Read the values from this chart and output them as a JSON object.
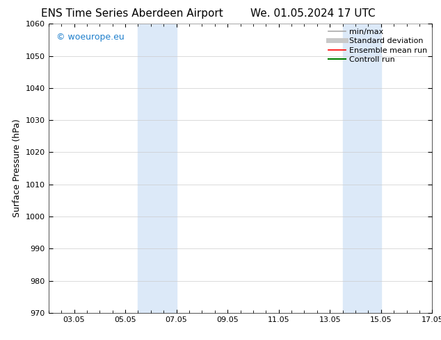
{
  "title_left": "ENS Time Series Aberdeen Airport",
  "title_right": "We. 01.05.2024 17 UTC",
  "ylabel": "Surface Pressure (hPa)",
  "ylim": [
    970,
    1060
  ],
  "yticks": [
    970,
    980,
    990,
    1000,
    1010,
    1020,
    1030,
    1040,
    1050,
    1060
  ],
  "xlim": [
    0,
    15
  ],
  "xtick_labels": [
    "03.05",
    "05.05",
    "07.05",
    "09.05",
    "11.05",
    "13.05",
    "15.05",
    "17.05"
  ],
  "xtick_positions": [
    1.0,
    3.0,
    5.0,
    7.0,
    9.0,
    11.0,
    13.0,
    15.0
  ],
  "minor_xtick_positions": [
    0.0,
    0.5,
    1.0,
    1.5,
    2.0,
    2.5,
    3.0,
    3.5,
    4.0,
    4.5,
    5.0,
    5.5,
    6.0,
    6.5,
    7.0,
    7.5,
    8.0,
    8.5,
    9.0,
    9.5,
    10.0,
    10.5,
    11.0,
    11.5,
    12.0,
    12.5,
    13.0,
    13.5,
    14.0,
    14.5,
    15.0
  ],
  "shaded_bands": [
    {
      "x_start": 3.5,
      "x_end": 5.0
    },
    {
      "x_start": 11.5,
      "x_end": 13.0
    }
  ],
  "shade_color": "#dce9f8",
  "watermark_text": "© woeurope.eu",
  "watermark_color": "#1e7fcc",
  "watermark_fontsize": 9,
  "legend_items": [
    {
      "label": "min/max",
      "color": "#aaaaaa",
      "lw": 1.2,
      "style": "solid"
    },
    {
      "label": "Standard deviation",
      "color": "#c8c8c8",
      "lw": 5,
      "style": "solid"
    },
    {
      "label": "Ensemble mean run",
      "color": "#ff0000",
      "lw": 1.2,
      "style": "solid"
    },
    {
      "label": "Controll run",
      "color": "#008000",
      "lw": 1.5,
      "style": "solid"
    }
  ],
  "bg_color": "#ffffff",
  "grid_color": "#cccccc",
  "grid_lw": 0.5,
  "title_fontsize": 11,
  "axis_label_fontsize": 9,
  "tick_fontsize": 8,
  "legend_fontsize": 8
}
